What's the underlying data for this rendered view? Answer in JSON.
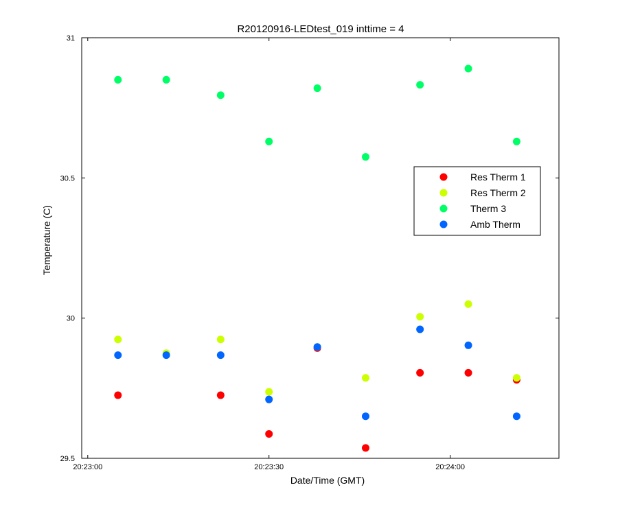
{
  "chart_data": {
    "type": "scatter",
    "title": "R20120916-LEDtest_019 inttime = 4",
    "xlabel": "Date/Time (GMT)",
    "ylabel": "Temperature (C)",
    "xlim": [
      "20:22:59",
      "20:24:18"
    ],
    "ylim": [
      29.5,
      31
    ],
    "grid": false,
    "legend_position": "top-right",
    "x_ticks": [
      "20:23:00",
      "20:23:30",
      "20:24:00"
    ],
    "y_ticks": [
      "29.5",
      "30",
      "30.5",
      "31"
    ],
    "x": [
      "20:23:05",
      "20:23:13",
      "20:23:22",
      "20:23:30",
      "20:23:38",
      "20:23:46",
      "20:23:55",
      "20:24:03",
      "20:24:11"
    ],
    "series": [
      {
        "name": "Res Therm 1",
        "color": "#ff0000",
        "values": [
          29.725,
          null,
          29.725,
          29.587,
          29.893,
          29.537,
          29.805,
          29.805,
          29.78
        ]
      },
      {
        "name": "Res Therm 2",
        "color": "#ccff00",
        "values": [
          29.924,
          29.875,
          29.924,
          29.737,
          29.897,
          29.787,
          30.005,
          30.05,
          29.787
        ]
      },
      {
        "name": "Therm 3",
        "color": "#00ff66",
        "values": [
          30.85,
          30.85,
          30.795,
          30.63,
          30.82,
          30.575,
          30.832,
          30.89,
          30.63
        ]
      },
      {
        "name": "Amb Therm",
        "color": "#0066ff",
        "values": [
          29.868,
          29.868,
          29.868,
          29.71,
          29.897,
          29.65,
          29.96,
          29.903,
          29.65
        ]
      }
    ]
  }
}
